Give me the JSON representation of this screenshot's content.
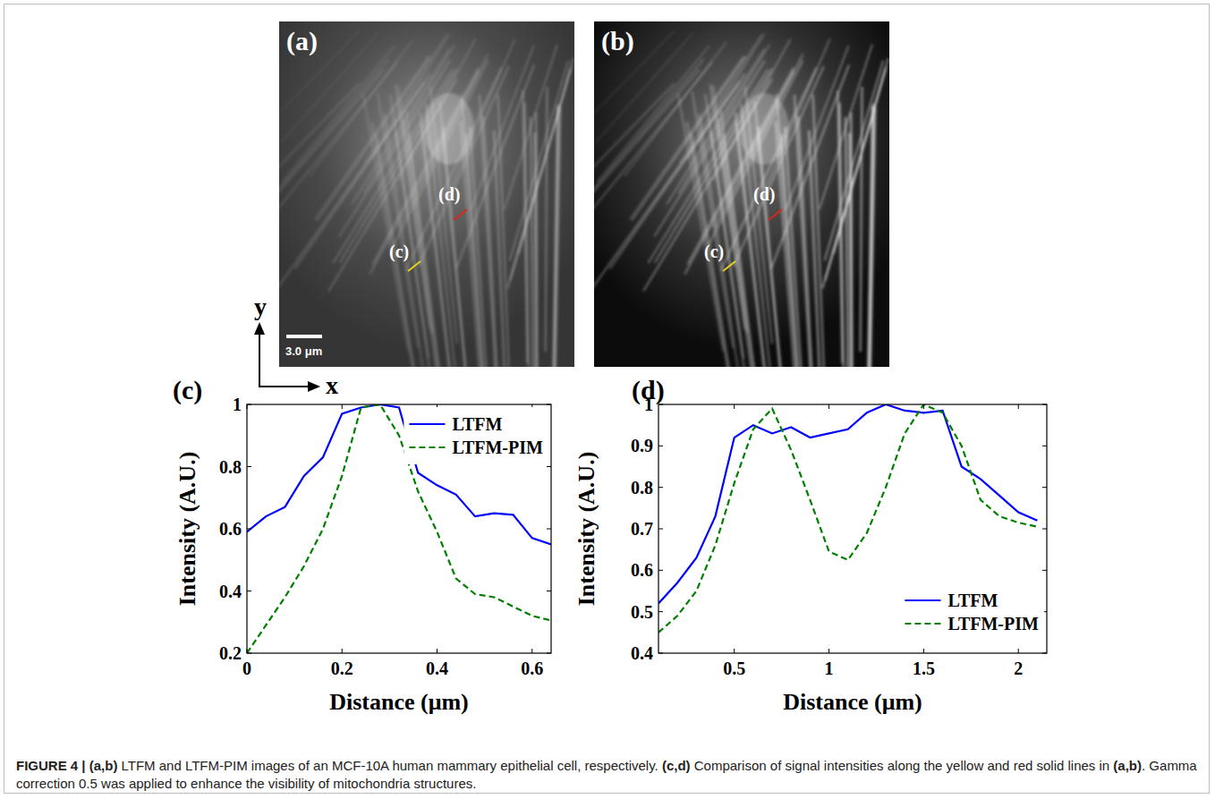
{
  "figure": {
    "panels": [
      {
        "label": "(a)",
        "line_labels": [
          "(d)",
          "(c)"
        ]
      },
      {
        "label": "(b)",
        "line_labels": [
          "(d)",
          "(c)"
        ]
      }
    ],
    "scale_bar": "3.0 μm",
    "axes_arrows": {
      "y": "y",
      "x": "x"
    },
    "caption": [
      {
        "text": "FIGURE 4 | ",
        "bold": true
      },
      {
        "text": "(a,b)",
        "bold": true
      },
      {
        "text": " LTFM and LTFM-PIM images of an MCF-10A human mammary epithelial cell, respectively. ",
        "bold": false
      },
      {
        "text": "(c,d)",
        "bold": true
      },
      {
        "text": " Comparison of signal intensities along the yellow and red solid lines in ",
        "bold": false
      },
      {
        "text": "(a,b)",
        "bold": true
      },
      {
        "text": ". Gamma correction 0.5 was applied to enhance the visibility of mitochondria structures.",
        "bold": false
      }
    ]
  },
  "chart_data": [
    {
      "type": "line",
      "title": "(c)",
      "x_label": "Distance (μm)",
      "y_label": "Intensity (A.U.)",
      "x": [
        0,
        0.04,
        0.08,
        0.12,
        0.16,
        0.2,
        0.24,
        0.28,
        0.32,
        0.36,
        0.4,
        0.44,
        0.48,
        0.52,
        0.56,
        0.6,
        0.64
      ],
      "series": [
        {
          "name": "LTFM",
          "color": "#0000ff",
          "line_style": "solid",
          "values": [
            0.59,
            0.64,
            0.67,
            0.77,
            0.83,
            0.97,
            0.99,
            1.0,
            0.99,
            0.78,
            0.74,
            0.71,
            0.64,
            0.65,
            0.645,
            0.57,
            0.55
          ]
        },
        {
          "name": "LTFM-PIM",
          "color": "#007f00",
          "line_style": "dashed",
          "values": [
            0.2,
            0.29,
            0.38,
            0.48,
            0.6,
            0.77,
            0.99,
            1.0,
            0.9,
            0.72,
            0.59,
            0.44,
            0.39,
            0.38,
            0.35,
            0.32,
            0.305
          ]
        }
      ],
      "xlim": [
        0,
        0.64
      ],
      "xticks": [
        0,
        0.2,
        0.4,
        0.6
      ],
      "ylim": [
        0.2,
        1
      ],
      "yticks": [
        0.2,
        0.4,
        0.6,
        0.8,
        1
      ],
      "legend": "upper right",
      "grid": false
    },
    {
      "type": "line",
      "title": "(d)",
      "x_label": "Distance (μm)",
      "y_label": "Intensity (A.U.)",
      "x": [
        0.1,
        0.2,
        0.3,
        0.4,
        0.5,
        0.6,
        0.7,
        0.8,
        0.9,
        1.0,
        1.1,
        1.2,
        1.3,
        1.4,
        1.5,
        1.6,
        1.7,
        1.8,
        1.9,
        2.0,
        2.1
      ],
      "series": [
        {
          "name": "LTFM",
          "color": "#0000ff",
          "line_style": "solid",
          "values": [
            0.52,
            0.57,
            0.63,
            0.73,
            0.92,
            0.95,
            0.93,
            0.945,
            0.92,
            0.93,
            0.94,
            0.98,
            1.0,
            0.985,
            0.98,
            0.985,
            0.85,
            0.82,
            0.78,
            0.74,
            0.72
          ]
        },
        {
          "name": "LTFM-PIM",
          "color": "#007f00",
          "line_style": "dashed",
          "values": [
            0.45,
            0.49,
            0.55,
            0.66,
            0.81,
            0.94,
            0.99,
            0.89,
            0.77,
            0.645,
            0.625,
            0.69,
            0.8,
            0.93,
            1.0,
            0.98,
            0.9,
            0.77,
            0.73,
            0.715,
            0.705
          ]
        }
      ],
      "xlim": [
        0.1,
        2.15
      ],
      "xticks": [
        0.5,
        1,
        1.5,
        2
      ],
      "ylim": [
        0.4,
        1
      ],
      "yticks": [
        0.4,
        0.5,
        0.6,
        0.7,
        0.8,
        0.9,
        1
      ],
      "legend": "lower right",
      "grid": false
    }
  ]
}
